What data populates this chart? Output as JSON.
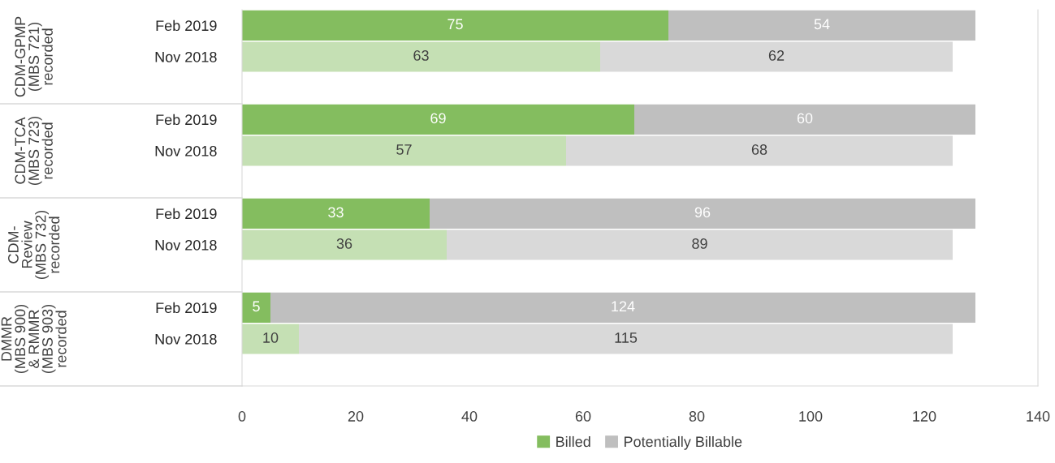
{
  "chart_data": {
    "type": "bar",
    "orientation": "horizontal",
    "stacked": true,
    "categories": [
      "Feb 2019",
      "Nov 2018",
      null,
      "Feb 2019",
      "Nov 2018",
      null,
      "Feb 2019",
      "Nov 2018",
      null,
      "Feb 2019",
      "Nov 2018",
      null
    ],
    "series": [
      {
        "name": "Billed",
        "color": "#84bd5f",
        "colors": [
          "#84bd5f",
          "#c5e0b4",
          null,
          "#84bd5f",
          "#c5e0b4",
          null,
          "#84bd5f",
          "#c5e0b4",
          null,
          "#84bd5f",
          "#c5e0b4",
          null
        ],
        "values": [
          75,
          63,
          null,
          69,
          57,
          null,
          33,
          36,
          null,
          5,
          10,
          null
        ]
      },
      {
        "name": "Potentially Billable",
        "color": "#bfbfbf",
        "colors": [
          "#bfbfbf",
          "#d9d9d9",
          null,
          "#bfbfbf",
          "#d9d9d9",
          null,
          "#bfbfbf",
          "#d9d9d9",
          null,
          "#bfbfbf",
          "#d9d9d9",
          null
        ],
        "values": [
          54,
          62,
          null,
          60,
          68,
          null,
          96,
          89,
          null,
          124,
          115,
          null
        ]
      }
    ],
    "annotations": [
      "CDM-GPMP\n(MBS 721)\nrecorded",
      "CDM-TCA\n(MBS 723)\nrecorded",
      "CDM-\nReview\n(MBS 732)\nrecorded",
      "DMMR\n(MBS 900)\n& RMMR\n(MBS 903)\nrecorded"
    ],
    "xlim": [
      0,
      140
    ],
    "xticks": [
      0,
      20,
      40,
      60,
      80,
      100,
      120,
      140
    ],
    "data_labels": true,
    "legend": "bottom",
    "grid": false
  }
}
